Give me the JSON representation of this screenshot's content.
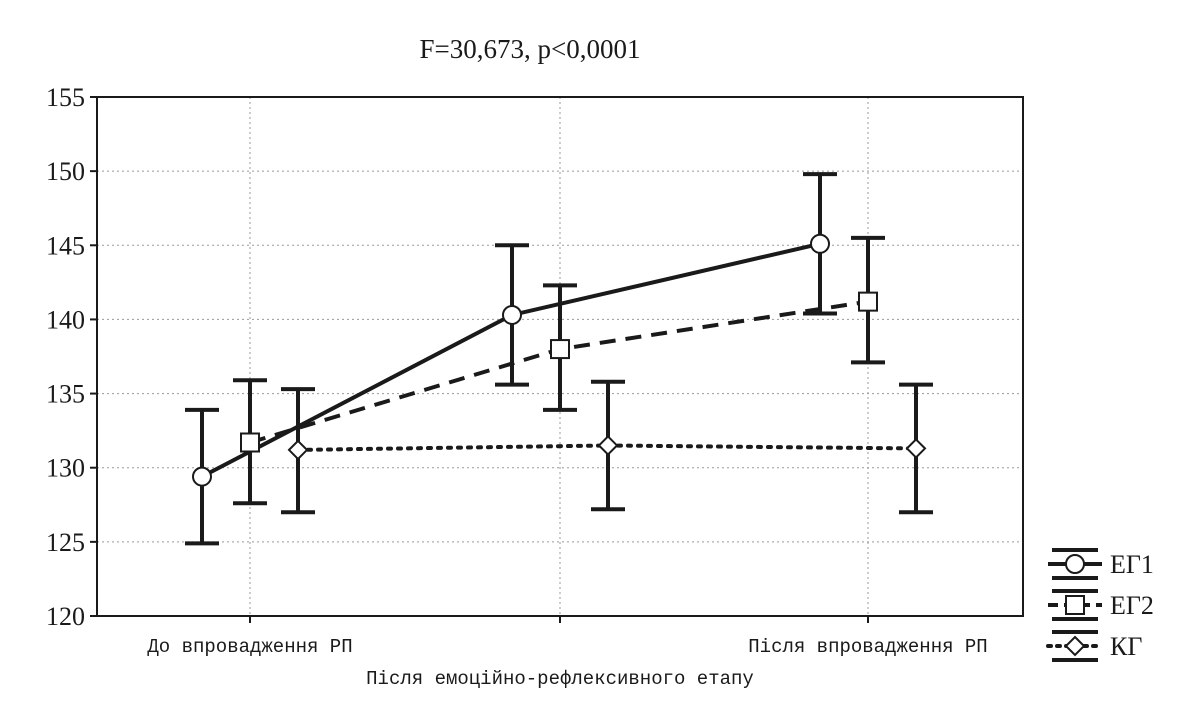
{
  "chart_data": {
    "type": "line",
    "title": "F=30,673, p<0,0001",
    "xlabel": "Після емоційно-рефлексивного етапу",
    "ylabel": "",
    "categories": [
      "До впровадження РП",
      "",
      "Після впровадження РП"
    ],
    "ylim": [
      120,
      155
    ],
    "yticks": [
      120,
      125,
      130,
      135,
      140,
      145,
      150,
      155
    ],
    "grid": true,
    "legend_position": "bottom-right-outside",
    "series": [
      {
        "name": "ЕГ1",
        "marker": "circle",
        "line_style": "solid",
        "values": [
          129.4,
          140.3,
          145.1
        ],
        "ci_lower": [
          124.9,
          135.6,
          140.4
        ],
        "ci_upper": [
          133.9,
          145.0,
          149.8
        ]
      },
      {
        "name": "ЕГ2",
        "marker": "square",
        "line_style": "dashed",
        "values": [
          131.7,
          138.0,
          141.2
        ],
        "ci_lower": [
          127.6,
          133.9,
          137.1
        ],
        "ci_upper": [
          135.9,
          142.3,
          145.5
        ]
      },
      {
        "name": "КГ",
        "marker": "diamond",
        "line_style": "dotted",
        "values": [
          131.2,
          131.5,
          131.3
        ],
        "ci_lower": [
          127.0,
          127.2,
          127.0
        ],
        "ci_upper": [
          135.3,
          135.8,
          135.6
        ]
      }
    ]
  },
  "colors": {
    "ink": "#1a1a1a",
    "grid": "#9a9a9a",
    "background": "#ffffff"
  }
}
